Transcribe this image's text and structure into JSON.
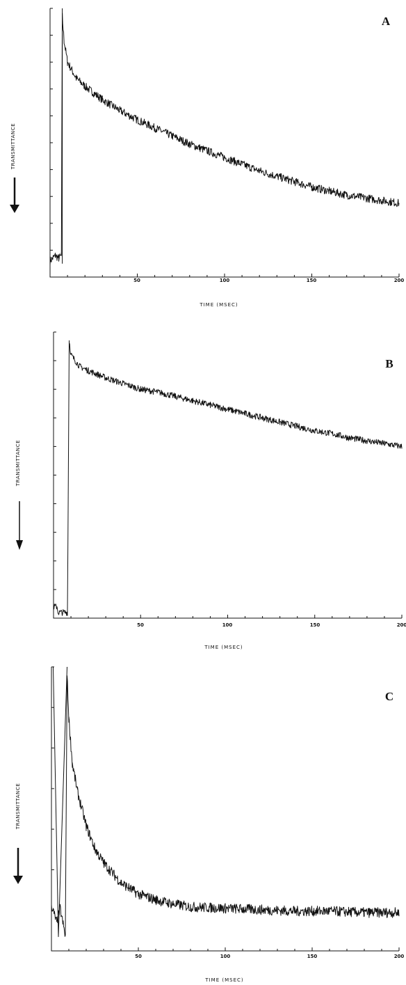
{
  "chart_data": [
    {
      "type": "line",
      "panel_label": "A",
      "xlabel": "TIME (MSEC)",
      "ylabel": "TRANSMITTANCE",
      "ylabel_arrow": "down",
      "xlim": [
        0,
        200
      ],
      "x_ticks": [
        50,
        100,
        150,
        200
      ],
      "x_tick_labels": [
        "50",
        "100",
        "150",
        "200"
      ],
      "y_tick_count": 11,
      "grid": false,
      "series": [
        {
          "points": [
            [
              0,
              0.06
            ],
            [
              3,
              0.08
            ],
            [
              5,
              0.07
            ],
            [
              6.5,
              0.08
            ],
            [
              7,
              0.97
            ],
            [
              8,
              0.88
            ],
            [
              10,
              0.8
            ],
            [
              15,
              0.74
            ],
            [
              20,
              0.71
            ],
            [
              30,
              0.66
            ],
            [
              40,
              0.62
            ],
            [
              50,
              0.585
            ],
            [
              60,
              0.555
            ],
            [
              70,
              0.525
            ],
            [
              80,
              0.495
            ],
            [
              90,
              0.47
            ],
            [
              100,
              0.445
            ],
            [
              110,
              0.42
            ],
            [
              120,
              0.395
            ],
            [
              130,
              0.375
            ],
            [
              140,
              0.355
            ],
            [
              150,
              0.335
            ],
            [
              160,
              0.32
            ],
            [
              170,
              0.305
            ],
            [
              180,
              0.295
            ],
            [
              190,
              0.285
            ],
            [
              200,
              0.275
            ]
          ],
          "noise": 0.015
        },
        {
          "points": [
            [
              7,
              1.0
            ],
            [
              7,
              0.05
            ]
          ],
          "noise": 0
        }
      ]
    },
    {
      "type": "line",
      "panel_label": "B",
      "xlabel": "TIME (MSEC)",
      "ylabel": "TRANSMITTANCE",
      "ylabel_arrow": "down",
      "xlim": [
        0,
        200
      ],
      "x_ticks": [
        50,
        100,
        150,
        200
      ],
      "x_tick_labels": [
        "50",
        "100",
        "150",
        "200"
      ],
      "y_tick_count": 11,
      "grid": false,
      "series": [
        {
          "points": [
            [
              0,
              0.04
            ],
            [
              2,
              0.04
            ],
            [
              2.5,
              0.02
            ],
            [
              8,
              0.02
            ],
            [
              9,
              0.97
            ],
            [
              10,
              0.92
            ],
            [
              15,
              0.88
            ],
            [
              20,
              0.865
            ],
            [
              30,
              0.84
            ],
            [
              40,
              0.82
            ],
            [
              50,
              0.8
            ],
            [
              60,
              0.79
            ],
            [
              70,
              0.775
            ],
            [
              80,
              0.76
            ],
            [
              90,
              0.745
            ],
            [
              100,
              0.73
            ],
            [
              110,
              0.715
            ],
            [
              120,
              0.7
            ],
            [
              130,
              0.685
            ],
            [
              140,
              0.67
            ],
            [
              150,
              0.655
            ],
            [
              160,
              0.645
            ],
            [
              170,
              0.63
            ],
            [
              180,
              0.62
            ],
            [
              190,
              0.61
            ],
            [
              200,
              0.6
            ]
          ],
          "noise": 0.011
        },
        {
          "points": [
            [
              0,
              1.0
            ],
            [
              0,
              0.05
            ]
          ],
          "noise": 0
        }
      ]
    },
    {
      "type": "line",
      "panel_label": "C",
      "xlabel": "TIME (MSEC)",
      "ylabel": "TRANSMITTANCE",
      "ylabel_arrow": "down",
      "xlim": [
        0,
        200
      ],
      "x_ticks": [
        50,
        100,
        150,
        200
      ],
      "x_tick_labels": [
        "50",
        "100",
        "150",
        "200"
      ],
      "y_tick_count": 8,
      "grid": false,
      "series": [
        {
          "points": [
            [
              0,
              0.16
            ],
            [
              3,
              0.1
            ],
            [
              5,
              0.15
            ],
            [
              8,
              0.05
            ],
            [
              9,
              0.97
            ],
            [
              10,
              0.82
            ],
            [
              12,
              0.66
            ],
            [
              15,
              0.56
            ],
            [
              20,
              0.44
            ],
            [
              25,
              0.36
            ],
            [
              30,
              0.31
            ],
            [
              40,
              0.24
            ],
            [
              50,
              0.2
            ],
            [
              60,
              0.18
            ],
            [
              70,
              0.165
            ],
            [
              80,
              0.155
            ],
            [
              100,
              0.15
            ],
            [
              120,
              0.145
            ],
            [
              140,
              0.14
            ],
            [
              160,
              0.14
            ],
            [
              180,
              0.135
            ],
            [
              200,
              0.135
            ]
          ],
          "noise": 0.018
        },
        {
          "points": [
            [
              1,
              1.0
            ],
            [
              4,
              0.05
            ],
            [
              9,
              1.0
            ]
          ],
          "noise": 0
        }
      ]
    }
  ]
}
